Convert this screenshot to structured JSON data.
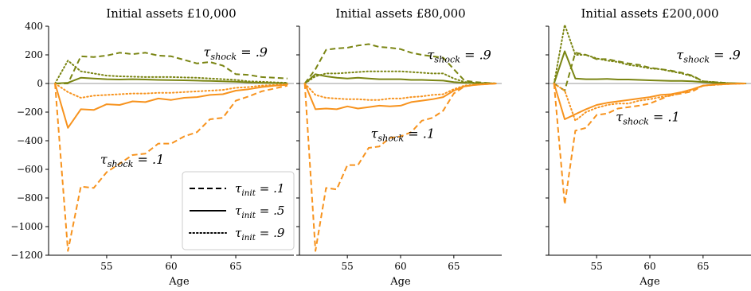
{
  "chart_data": [
    {
      "type": "line",
      "title": "Initial assets £10,000",
      "xlabel": "Age",
      "ylabel": "",
      "xlim": [
        50.5,
        69.5
      ],
      "ylim": [
        -1200,
        400
      ],
      "xticks": [
        55,
        60,
        65
      ],
      "yticks": [
        -1200,
        -1000,
        -800,
        -600,
        -400,
        -200,
        0,
        200,
        400
      ],
      "ytick_labels": [
        "−1200",
        "−1000",
        "−800",
        "−600",
        "−400",
        "−200",
        "0",
        "200",
        "400"
      ],
      "x": [
        51,
        52,
        53,
        54,
        55,
        56,
        57,
        58,
        59,
        60,
        61,
        62,
        63,
        64,
        65,
        66,
        67,
        68,
        69
      ],
      "annotations": [
        {
          "text_main": "τ",
          "text_sub": "shock",
          "text_rest": " = .9",
          "x": 62.5,
          "y": 190,
          "color_key": "olive"
        },
        {
          "text_main": "τ",
          "text_sub": "shock",
          "text_rest": " = .1",
          "x": 54.5,
          "y": -560,
          "color_key": "orange"
        }
      ],
      "series": [
        {
          "group": "shock .9",
          "tau_init": ".1",
          "style": "dashed",
          "color_key": "olive",
          "values": [
            0,
            0,
            190,
            185,
            195,
            215,
            205,
            215,
            195,
            190,
            165,
            140,
            150,
            125,
            65,
            60,
            45,
            40,
            35
          ]
        },
        {
          "group": "shock .9",
          "tau_init": ".5",
          "style": "solid",
          "color_key": "olive",
          "values": [
            0,
            5,
            40,
            35,
            30,
            28,
            30,
            28,
            25,
            24,
            22,
            20,
            18,
            15,
            12,
            8,
            5,
            3,
            2
          ]
        },
        {
          "group": "shock .9",
          "tau_init": ".9",
          "style": "dotted",
          "color_key": "olive",
          "values": [
            0,
            160,
            85,
            70,
            55,
            50,
            48,
            45,
            45,
            45,
            42,
            40,
            35,
            30,
            25,
            15,
            12,
            8,
            5
          ]
        },
        {
          "group": "shock .1",
          "tau_init": ".1",
          "style": "dashed",
          "color_key": "orange",
          "values": [
            0,
            -1170,
            -720,
            -730,
            -620,
            -560,
            -500,
            -490,
            -420,
            -420,
            -370,
            -340,
            -250,
            -240,
            -120,
            -90,
            -55,
            -35,
            -15
          ]
        },
        {
          "group": "shock .1",
          "tau_init": ".5",
          "style": "solid",
          "color_key": "orange",
          "values": [
            0,
            -310,
            -180,
            -185,
            -145,
            -150,
            -125,
            -130,
            -105,
            -115,
            -100,
            -95,
            -80,
            -75,
            -50,
            -40,
            -25,
            -15,
            -10
          ]
        },
        {
          "group": "shock .1",
          "tau_init": ".9",
          "style": "dotted",
          "color_key": "orange",
          "values": [
            0,
            -60,
            -100,
            -85,
            -80,
            -75,
            -70,
            -70,
            -65,
            -65,
            -60,
            -55,
            -50,
            -45,
            -30,
            -25,
            -15,
            -10,
            -5
          ]
        }
      ]
    },
    {
      "type": "line",
      "title": "Initial assets £80,000",
      "xlabel": "Age",
      "ylabel": "",
      "xlim": [
        50.5,
        69.5
      ],
      "ylim": [
        -1200,
        400
      ],
      "xticks": [
        55,
        60,
        65
      ],
      "x": [
        51,
        52,
        53,
        54,
        55,
        56,
        57,
        58,
        59,
        60,
        61,
        62,
        63,
        64,
        65,
        66,
        67,
        68,
        69
      ],
      "annotations": [
        {
          "text_main": "τ",
          "text_sub": "shock",
          "text_rest": " = .9",
          "x": 62.5,
          "y": 170,
          "color_key": "olive"
        },
        {
          "text_main": "τ",
          "text_sub": "shock",
          "text_rest": " = .1",
          "x": 57.2,
          "y": -380,
          "color_key": "orange"
        }
      ],
      "series": [
        {
          "group": "shock .9",
          "tau_init": ".1",
          "style": "dashed",
          "color_key": "olive",
          "values": [
            0,
            100,
            235,
            245,
            250,
            265,
            275,
            255,
            250,
            240,
            215,
            200,
            190,
            180,
            100,
            20,
            10,
            5,
            0
          ]
        },
        {
          "group": "shock .9",
          "tau_init": ".5",
          "style": "solid",
          "color_key": "olive",
          "values": [
            0,
            65,
            50,
            40,
            35,
            40,
            35,
            30,
            30,
            30,
            25,
            25,
            22,
            20,
            10,
            5,
            3,
            2,
            0
          ]
        },
        {
          "group": "shock .9",
          "tau_init": ".9",
          "style": "dotted",
          "color_key": "olive",
          "values": [
            0,
            50,
            70,
            70,
            75,
            80,
            85,
            85,
            85,
            85,
            80,
            75,
            70,
            70,
            35,
            10,
            5,
            3,
            0
          ]
        },
        {
          "group": "shock .1",
          "tau_init": ".1",
          "style": "dashed",
          "color_key": "orange",
          "values": [
            0,
            -1170,
            -730,
            -740,
            -570,
            -570,
            -450,
            -440,
            -380,
            -370,
            -340,
            -260,
            -240,
            -190,
            -70,
            -20,
            -10,
            -5,
            0
          ]
        },
        {
          "group": "shock .1",
          "tau_init": ".5",
          "style": "solid",
          "color_key": "orange",
          "values": [
            0,
            -180,
            -175,
            -180,
            -160,
            -175,
            -165,
            -155,
            -160,
            -155,
            -130,
            -120,
            -110,
            -95,
            -50,
            -20,
            -10,
            -5,
            0
          ]
        },
        {
          "group": "shock .1",
          "tau_init": ".9",
          "style": "dotted",
          "color_key": "orange",
          "values": [
            0,
            -80,
            -100,
            -105,
            -110,
            -110,
            -115,
            -115,
            -105,
            -105,
            -95,
            -90,
            -80,
            -75,
            -40,
            -15,
            -8,
            -3,
            0
          ]
        }
      ]
    },
    {
      "type": "line",
      "title": "Initial assets £200,000",
      "xlabel": "Age",
      "ylabel": "",
      "xlim": [
        50.5,
        69.5
      ],
      "ylim": [
        -1200,
        400
      ],
      "xticks": [
        55,
        60,
        65
      ],
      "x": [
        51,
        52,
        53,
        54,
        55,
        56,
        57,
        58,
        59,
        60,
        61,
        62,
        63,
        64,
        65,
        66,
        67,
        68,
        69
      ],
      "annotations": [
        {
          "text_main": "τ",
          "text_sub": "shock",
          "text_rest": " = .9",
          "x": 62.5,
          "y": 170,
          "color_key": "olive"
        },
        {
          "text_main": "τ",
          "text_sub": "shock",
          "text_rest": " = .1",
          "x": 56.8,
          "y": -265,
          "color_key": "orange"
        }
      ],
      "series": [
        {
          "group": "shock .9",
          "tau_init": ".1",
          "style": "dashed",
          "color_key": "olive",
          "values": [
            0,
            -50,
            215,
            200,
            170,
            170,
            155,
            140,
            130,
            110,
            100,
            90,
            75,
            55,
            15,
            10,
            5,
            0,
            0
          ]
        },
        {
          "group": "shock .9",
          "tau_init": ".5",
          "style": "solid",
          "color_key": "olive",
          "values": [
            0,
            225,
            35,
            30,
            30,
            32,
            28,
            28,
            25,
            22,
            20,
            18,
            18,
            15,
            10,
            5,
            3,
            2,
            0
          ]
        },
        {
          "group": "shock .9",
          "tau_init": ".9",
          "style": "dotted",
          "color_key": "olive",
          "values": [
            0,
            410,
            200,
            200,
            175,
            160,
            150,
            130,
            120,
            105,
            100,
            85,
            70,
            50,
            15,
            10,
            5,
            0,
            0
          ]
        },
        {
          "group": "shock .1",
          "tau_init": ".1",
          "style": "dashed",
          "color_key": "orange",
          "values": [
            0,
            -845,
            -330,
            -310,
            -220,
            -210,
            -175,
            -165,
            -155,
            -140,
            -110,
            -80,
            -70,
            -55,
            -15,
            -10,
            -5,
            0,
            0
          ]
        },
        {
          "group": "shock .1",
          "tau_init": ".5",
          "style": "solid",
          "color_key": "orange",
          "values": [
            0,
            -250,
            -215,
            -180,
            -150,
            -135,
            -125,
            -115,
            -105,
            -95,
            -80,
            -75,
            -60,
            -40,
            -15,
            -8,
            -5,
            -2,
            0
          ]
        },
        {
          "group": "shock .1",
          "tau_init": ".9",
          "style": "dotted",
          "color_key": "orange",
          "values": [
            0,
            -50,
            -260,
            -200,
            -170,
            -150,
            -140,
            -140,
            -120,
            -110,
            -95,
            -85,
            -65,
            -45,
            -15,
            -10,
            -5,
            -2,
            0
          ]
        }
      ]
    }
  ],
  "legend": {
    "placement": "lower-left of first panel",
    "entries": [
      {
        "style": "dashed",
        "main": "τ",
        "sub": "init",
        "rest": " = .1"
      },
      {
        "style": "solid",
        "main": "τ",
        "sub": "init",
        "rest": " = .5"
      },
      {
        "style": "dotted",
        "main": "τ",
        "sub": "init",
        "rest": " = .9"
      }
    ]
  },
  "colors": {
    "olive": "#7a8513",
    "orange": "#f7931e",
    "zero_line": "#9a9a9a",
    "axis": "#000000",
    "legend_line": "#000000"
  }
}
